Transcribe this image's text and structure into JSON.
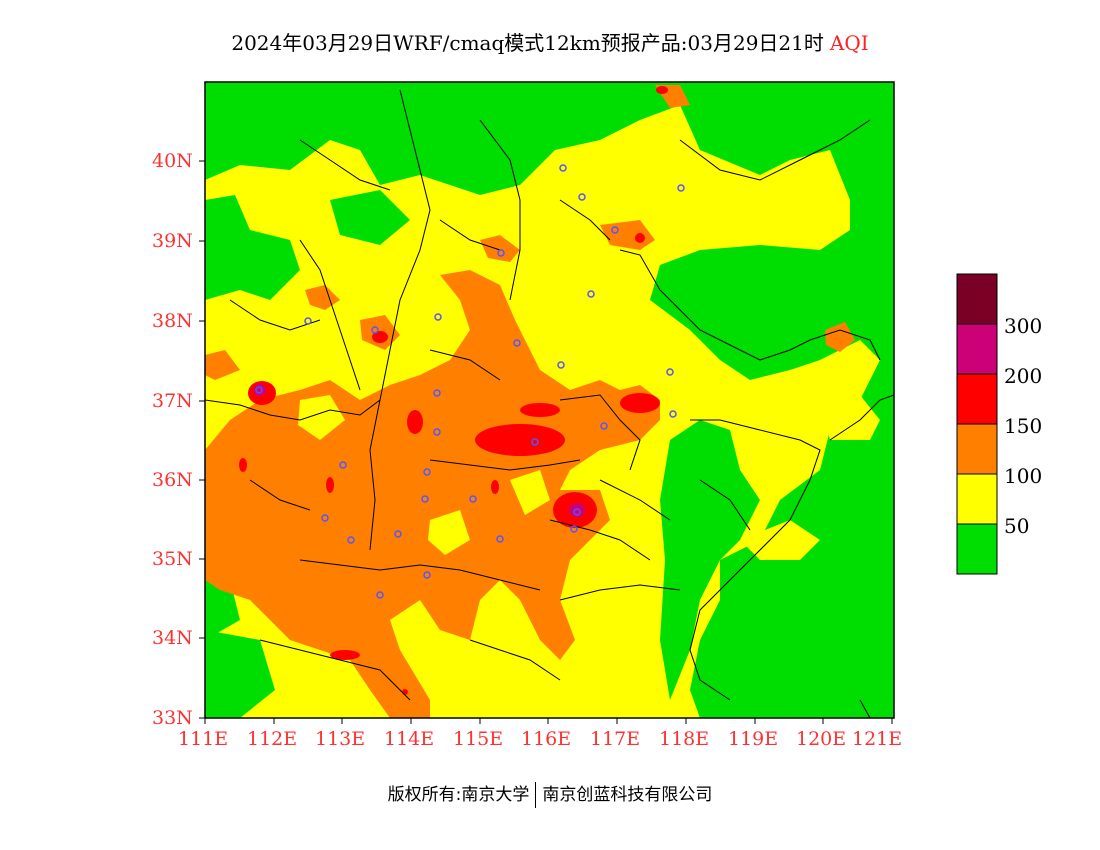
{
  "title": {
    "main": "2024年03月29日WRF/cmaq模式12km预报产品:03月29日21时",
    "product": "AQI"
  },
  "axes": {
    "lat_labels": [
      "40N",
      "39N",
      "38N",
      "37N",
      "36N",
      "35N",
      "34N",
      "33N"
    ],
    "lon_labels": [
      "111E",
      "112E",
      "113E",
      "114E",
      "115E",
      "116E",
      "117E",
      "118E",
      "119E",
      "120E",
      "121E"
    ]
  },
  "legend": {
    "labels": [
      "50",
      "100",
      "150",
      "200",
      "300"
    ],
    "colors": [
      "#00dd00",
      "#ffff00",
      "#ff8000",
      "#ff0000",
      "#cc0077",
      "#7a0025"
    ]
  },
  "footer": {
    "left": "版权所有:南京大学",
    "right": "南京创蓝科技有限公司"
  }
}
